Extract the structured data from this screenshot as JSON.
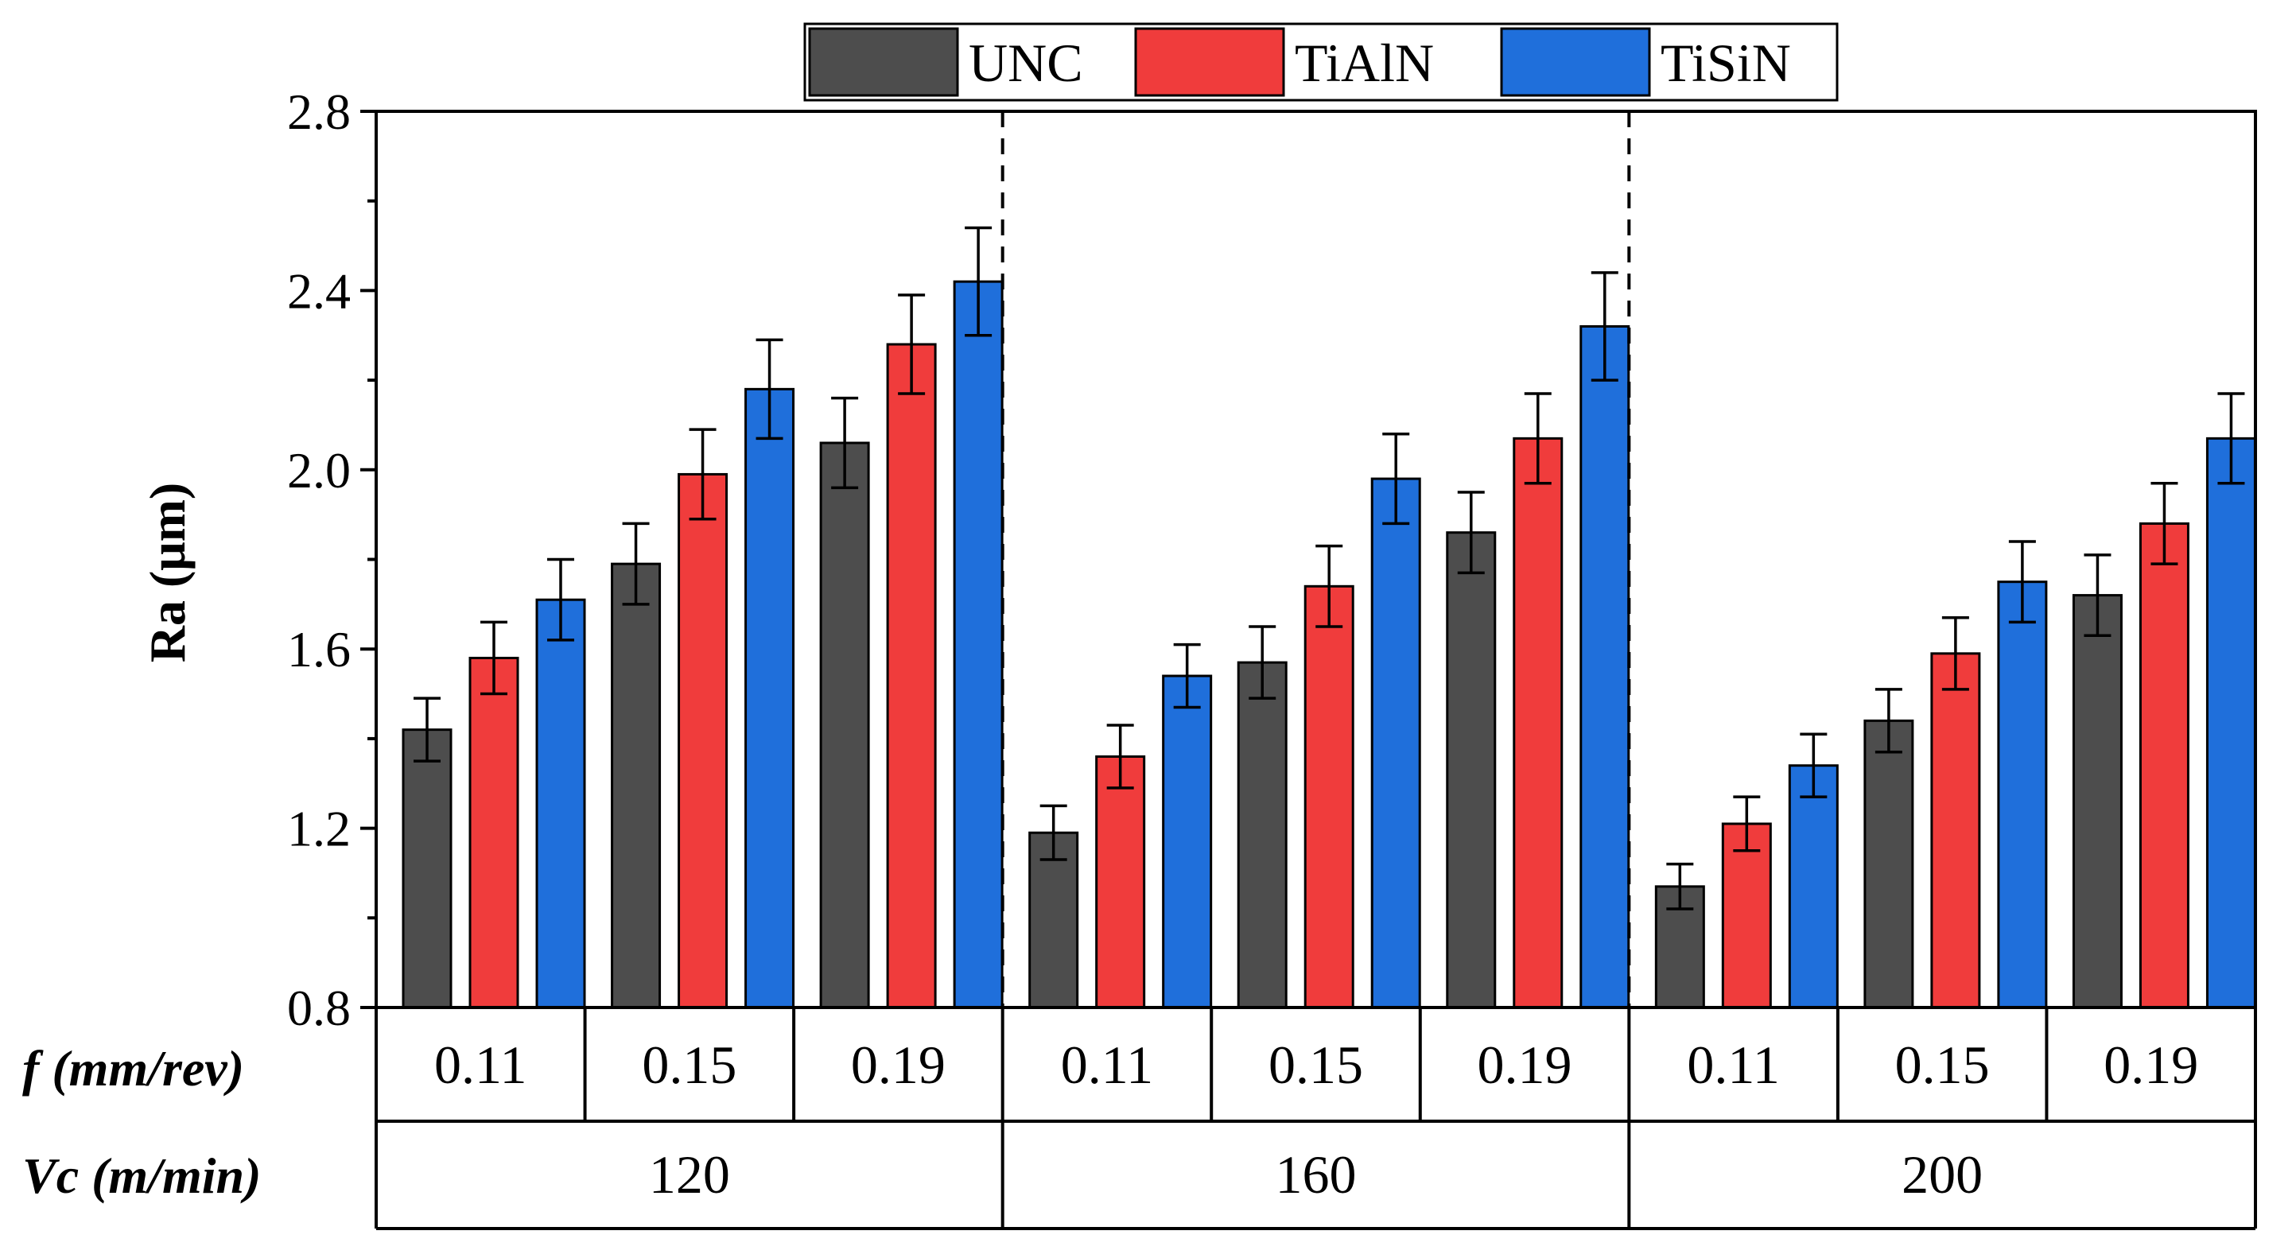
{
  "chart_data": {
    "type": "bar",
    "ylabel": "Ra (μm)",
    "ylim": [
      0.8,
      2.8
    ],
    "yticks": [
      "0.8",
      "1.2",
      "1.6",
      "2.0",
      "2.4",
      "2.8"
    ],
    "feed_row_label": "f (mm/rev)",
    "speed_row_label": "Vc (m/min)",
    "legend_position": "top-center",
    "groups": [
      {
        "speed": "120",
        "feeds": [
          "0.11",
          "0.15",
          "0.19"
        ]
      },
      {
        "speed": "160",
        "feeds": [
          "0.11",
          "0.15",
          "0.19"
        ]
      },
      {
        "speed": "200",
        "feeds": [
          "0.11",
          "0.15",
          "0.19"
        ]
      }
    ],
    "series": [
      {
        "name": "UNC",
        "color": "#4d4d4d",
        "values": [
          1.42,
          1.79,
          2.06,
          1.19,
          1.57,
          1.86,
          1.07,
          1.44,
          1.72
        ],
        "errors": [
          0.07,
          0.09,
          0.1,
          0.06,
          0.08,
          0.09,
          0.05,
          0.07,
          0.09
        ]
      },
      {
        "name": "TiAlN",
        "color": "#f03c3c",
        "values": [
          1.58,
          1.99,
          2.28,
          1.36,
          1.74,
          2.07,
          1.21,
          1.59,
          1.88
        ],
        "errors": [
          0.08,
          0.1,
          0.11,
          0.07,
          0.09,
          0.1,
          0.06,
          0.08,
          0.09
        ]
      },
      {
        "name": "TiSiN",
        "color": "#1f6fdb",
        "values": [
          1.71,
          2.18,
          2.42,
          1.54,
          1.98,
          2.32,
          1.34,
          1.75,
          2.07
        ],
        "errors": [
          0.09,
          0.11,
          0.12,
          0.07,
          0.1,
          0.12,
          0.07,
          0.09,
          0.1
        ]
      }
    ]
  }
}
